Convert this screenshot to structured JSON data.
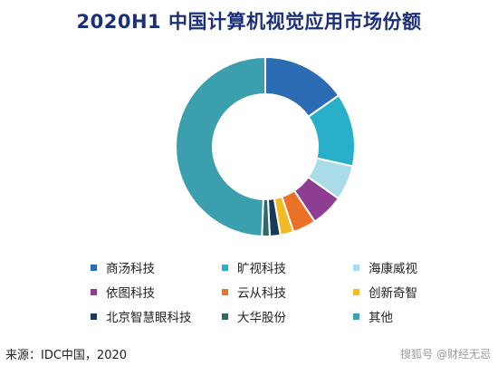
{
  "chart_data": {
    "type": "pie",
    "title": "2020H1 中国计算机视觉应用市场份额",
    "legend_placement": "bottom",
    "categories": [
      "商汤科技",
      "旷视科技",
      "海康威视",
      "依图科技",
      "云从科技",
      "创新奇智",
      "北京智慧眼科技",
      "大华股份",
      "其他"
    ],
    "values": [
      15.3,
      13.2,
      6.3,
      5.9,
      4.2,
      2.4,
      1.9,
      1.4,
      49.4
    ],
    "colors": [
      "#2b6cb4",
      "#2aafcb",
      "#a9dce8",
      "#8e3e92",
      "#ea7127",
      "#f3bb21",
      "#1a3a5a",
      "#2f6a6a",
      "#3b9fae"
    ]
  },
  "source": "来源：IDC中国，2020",
  "watermark": "搜狐号 @财经无忌"
}
